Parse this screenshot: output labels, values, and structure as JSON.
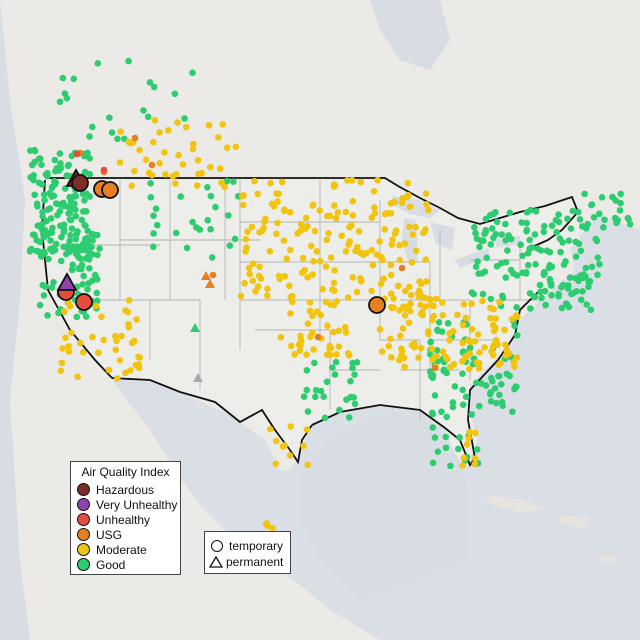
{
  "map": {
    "colors": {
      "land": "#eceae6",
      "neighbor": "#e6e4df",
      "water": "#d7dde3",
      "us": "#ededea",
      "state_line": "#b4b4b4",
      "border": "#111111"
    },
    "legend": {
      "title": "Air Quality Index",
      "items": [
        {
          "label": "Hazardous",
          "color": "#7b2d26"
        },
        {
          "label": "Very Unhealthy",
          "color": "#8e44ad"
        },
        {
          "label": "Unhealthy",
          "color": "#e74c3c"
        },
        {
          "label": "USG",
          "color": "#e67e22"
        },
        {
          "label": "Moderate",
          "color": "#f1c40f"
        },
        {
          "label": "Good",
          "color": "#2ecc71"
        }
      ]
    },
    "type_legend": {
      "temporary": "temporary",
      "permanent": "permanent"
    }
  }
}
